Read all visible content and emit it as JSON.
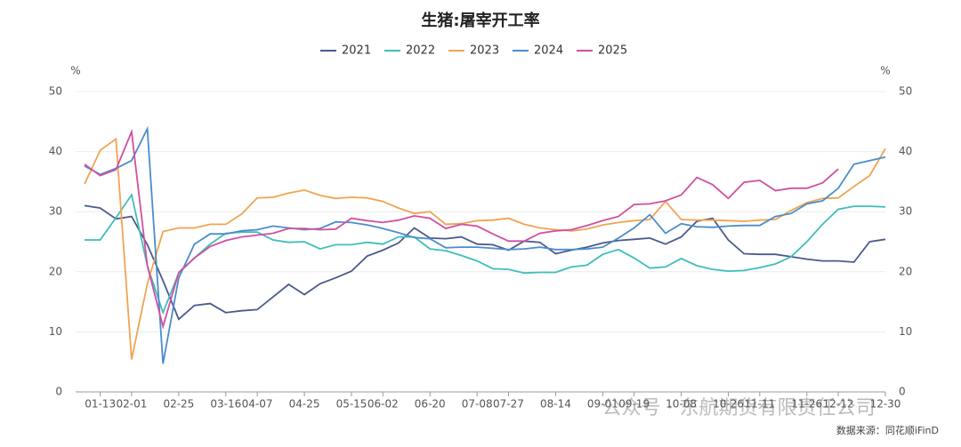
{
  "chart_data": {
    "type": "line",
    "title": "生猪:屠宰开工率",
    "y_unit": "%",
    "y2_unit": "%",
    "source": "数据来源：同花顺iFinD",
    "watermark": "公众号 · 东航期货有限责任公司",
    "categories": [
      null,
      "01-13",
      null,
      "02-01",
      null,
      null,
      "02-25",
      null,
      null,
      "03-16",
      null,
      "04-07",
      null,
      null,
      "04-25",
      null,
      null,
      "05-15",
      null,
      "06-02",
      null,
      null,
      "06-20",
      null,
      null,
      "07-08",
      null,
      "07-27",
      null,
      null,
      "08-14",
      null,
      null,
      "09-01",
      null,
      "09-19",
      null,
      null,
      "10-08",
      null,
      null,
      "10-26",
      null,
      "11-11",
      null,
      null,
      "11-26",
      null,
      "12-12",
      null,
      null,
      "12-30"
    ],
    "series": [
      {
        "name": "2021",
        "color": "#4b5a8e",
        "values": [
          31.0,
          30.6,
          28.8,
          29.2,
          24.5,
          18.5,
          12.1,
          14.4,
          14.7,
          13.2,
          13.5,
          13.7,
          15.8,
          17.9,
          16.2,
          18.0,
          19.0,
          20.1,
          22.6,
          23.6,
          24.8,
          27.3,
          25.6,
          25.5,
          25.8,
          24.6,
          24.5,
          23.6,
          25.1,
          24.9,
          23.0,
          23.6,
          24.1,
          24.8,
          25.2,
          25.4,
          25.6,
          24.6,
          25.8,
          28.4,
          28.9,
          25.3,
          23.0,
          22.9,
          22.9,
          22.5,
          22.1,
          21.8,
          21.8,
          21.6,
          25.0,
          25.4
        ]
      },
      {
        "name": "2022",
        "color": "#3fbdbd",
        "values": [
          25.3,
          25.3,
          29.0,
          32.8,
          21.0,
          13.2,
          19.8,
          22.3,
          24.6,
          26.4,
          26.6,
          26.6,
          25.3,
          24.9,
          25.0,
          23.8,
          24.5,
          24.5,
          24.9,
          24.6,
          25.8,
          25.8,
          23.8,
          23.5,
          22.7,
          21.8,
          20.5,
          20.4,
          19.8,
          19.9,
          19.9,
          20.8,
          21.1,
          22.9,
          23.7,
          22.3,
          20.6,
          20.8,
          22.2,
          21.0,
          20.4,
          20.1,
          20.2,
          20.7,
          21.3,
          22.5,
          25.0,
          27.9,
          30.4,
          30.9,
          30.9,
          30.8
        ]
      },
      {
        "name": "2023",
        "color": "#f0a452",
        "values": [
          34.6,
          40.2,
          42.1,
          5.4,
          18.0,
          26.7,
          27.3,
          27.3,
          27.9,
          27.9,
          29.6,
          32.3,
          32.4,
          33.1,
          33.6,
          32.7,
          32.2,
          32.4,
          32.3,
          31.7,
          30.6,
          29.7,
          30.0,
          27.9,
          28.0,
          28.5,
          28.6,
          28.9,
          27.9,
          27.3,
          27.0,
          26.8,
          27.1,
          27.8,
          28.2,
          28.5,
          28.7,
          31.7,
          28.7,
          28.6,
          28.6,
          28.5,
          28.4,
          28.6,
          28.7,
          30.2,
          31.5,
          32.2,
          32.3,
          34.2,
          36.0,
          40.5
        ]
      },
      {
        "name": "2024",
        "color": "#4a8dcb",
        "values": [
          37.6,
          36.2,
          37.2,
          38.5,
          43.8,
          4.7,
          19.0,
          24.6,
          26.3,
          26.3,
          26.8,
          27.0,
          27.6,
          27.3,
          27.0,
          27.2,
          28.3,
          28.2,
          27.8,
          27.2,
          26.5,
          25.7,
          25.5,
          24.0,
          24.1,
          24.1,
          23.9,
          23.7,
          23.8,
          24.1,
          23.7,
          23.7,
          23.8,
          24.1,
          25.6,
          27.3,
          29.5,
          26.4,
          28.0,
          27.5,
          27.4,
          27.6,
          27.7,
          27.7,
          29.2,
          29.7,
          31.3,
          31.8,
          33.9,
          37.9,
          38.5,
          39.1
        ]
      },
      {
        "name": "2025",
        "color": "#d24f9e",
        "values": [
          37.9,
          36.0,
          37.0,
          43.3,
          21.0,
          10.9,
          19.9,
          22.3,
          24.2,
          25.2,
          25.8,
          26.1,
          26.4,
          27.2,
          27.2,
          27.0,
          27.1,
          28.9,
          28.5,
          28.2,
          28.6,
          29.3,
          28.9,
          27.2,
          27.9,
          27.6,
          26.3,
          25.1,
          25.1,
          26.4,
          26.8,
          27.0,
          27.7,
          28.5,
          29.2,
          31.2,
          31.3,
          31.8,
          32.8,
          35.7,
          34.5,
          32.2,
          34.9,
          35.2,
          33.5,
          33.9,
          33.9,
          34.8,
          37.1,
          null,
          null,
          null
        ]
      }
    ],
    "ylim": [
      0,
      50
    ],
    "yticks": [
      0,
      10,
      20,
      30,
      40,
      50
    ],
    "y2lim": [
      0,
      50
    ],
    "y2ticks": [
      0,
      10,
      20,
      30,
      40,
      50
    ],
    "grid": true,
    "legend": "top"
  }
}
